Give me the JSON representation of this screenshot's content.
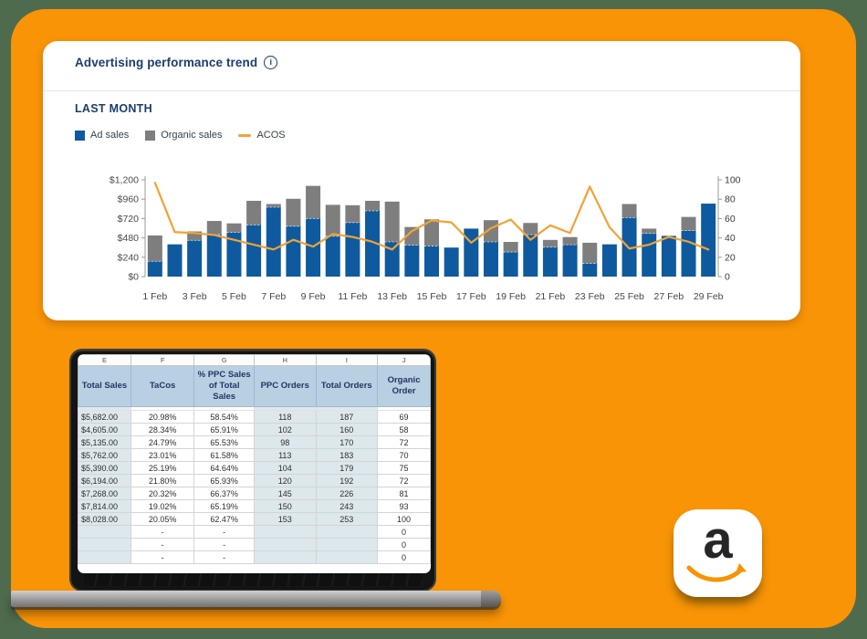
{
  "colors": {
    "outer_background": "#4f6b4d",
    "panel_orange": "#f99406",
    "card_navy": "#1b3e6d",
    "bar_blue": "#0f5a9e",
    "bar_gray": "#7e7e7e",
    "acos_orange": "#f2a234",
    "table_header_bg": "#b9cfe2",
    "table_shaded_col": "#dde8ec"
  },
  "chart_card": {
    "title": "Advertising performance trend",
    "info_icon_glyph": "i",
    "period_label": "LAST MONTH",
    "legend": [
      {
        "label": "Ad sales",
        "type": "square",
        "color": "#0f5a9e"
      },
      {
        "label": "Organic sales",
        "type": "square",
        "color": "#7e7e7e"
      },
      {
        "label": "ACOS",
        "type": "line",
        "color": "#f2a234"
      }
    ]
  },
  "chart_data": {
    "type": "bar",
    "subtype": "stacked-bars-with-line",
    "categories": [
      "1 Feb",
      "2 Feb",
      "3 Feb",
      "4 Feb",
      "5 Feb",
      "6 Feb",
      "7 Feb",
      "8 Feb",
      "9 Feb",
      "10 Feb",
      "11 Feb",
      "12 Feb",
      "13 Feb",
      "14 Feb",
      "15 Feb",
      "16 Feb",
      "17 Feb",
      "18 Feb",
      "19 Feb",
      "20 Feb",
      "21 Feb",
      "22 Feb",
      "23 Feb",
      "24 Feb",
      "25 Feb",
      "26 Feb",
      "27 Feb",
      "28 Feb",
      "29 Feb"
    ],
    "x_tick_labels_shown": [
      "1 Feb",
      "3 Feb",
      "5 Feb",
      "7 Feb",
      "9 Feb",
      "11 Feb",
      "13 Feb",
      "15 Feb",
      "17 Feb",
      "19 Feb",
      "21 Feb",
      "23 Feb",
      "25 Feb",
      "27 Feb",
      "29 Feb"
    ],
    "series": [
      {
        "name": "Ad sales",
        "type": "bar",
        "stack": "sales",
        "axis": "left",
        "color": "#0f5a9e",
        "values": [
          190,
          400,
          450,
          520,
          550,
          640,
          860,
          625,
          720,
          500,
          670,
          815,
          430,
          390,
          380,
          360,
          595,
          430,
          305,
          520,
          365,
          395,
          165,
          400,
          730,
          535,
          505,
          570,
          905
        ]
      },
      {
        "name": "Organic sales",
        "type": "bar",
        "stack": "sales",
        "axis": "left",
        "color": "#7e7e7e",
        "values": [
          320,
          0,
          110,
          170,
          110,
          300,
          40,
          340,
          405,
          390,
          215,
          125,
          500,
          225,
          330,
          0,
          0,
          270,
          125,
          145,
          90,
          95,
          255,
          0,
          170,
          60,
          0,
          170,
          0
        ]
      },
      {
        "name": "ACOS",
        "type": "line",
        "axis": "right",
        "color": "#f2a234",
        "values": [
          97,
          46,
          45,
          43,
          38,
          33,
          28,
          38,
          31,
          44,
          41,
          36,
          28,
          47,
          58,
          56,
          35,
          50,
          59,
          38,
          53,
          45,
          93,
          51,
          29,
          33,
          41,
          36,
          28
        ]
      }
    ],
    "left_axis": {
      "min": 0,
      "max": 1200,
      "tick_values": [
        0,
        240,
        480,
        720,
        960,
        1200
      ],
      "tick_labels": [
        "$0",
        "$240",
        "$480",
        "$720",
        "$960",
        "$1,200"
      ]
    },
    "right_axis": {
      "min": 0,
      "max": 100,
      "tick_values": [
        0,
        20,
        40,
        60,
        80,
        100
      ],
      "tick_labels": [
        "0",
        "20",
        "40",
        "60",
        "80",
        "100"
      ]
    },
    "grid": false,
    "legend_position": "top-left"
  },
  "spreadsheet": {
    "column_letters": [
      "E",
      "F",
      "G",
      "H",
      "I",
      "J"
    ],
    "headers": [
      "Total Sales",
      "TaCos",
      "% PPC Sales of Total Sales",
      "PPC Orders",
      "Total Orders",
      "Organic Order"
    ],
    "shaded_column_indexes": [
      0,
      3,
      4
    ],
    "rows": [
      [
        "$5,682.00",
        "20.98%",
        "58.54%",
        "118",
        "187",
        "69"
      ],
      [
        "$4,605.00",
        "28.34%",
        "65.91%",
        "102",
        "160",
        "58"
      ],
      [
        "$5,135.00",
        "24.79%",
        "65.53%",
        "98",
        "170",
        "72"
      ],
      [
        "$5,762.00",
        "23.01%",
        "61.58%",
        "113",
        "183",
        "70"
      ],
      [
        "$5,390.00",
        "25.19%",
        "64.64%",
        "104",
        "179",
        "75"
      ],
      [
        "$6,194.00",
        "21.80%",
        "65.93%",
        "120",
        "192",
        "72"
      ],
      [
        "$7,268.00",
        "20.32%",
        "66.37%",
        "145",
        "226",
        "81"
      ],
      [
        "$7,814.00",
        "19.02%",
        "65.19%",
        "150",
        "243",
        "93"
      ],
      [
        "$8,028.00",
        "20.05%",
        "62.47%",
        "153",
        "253",
        "100"
      ],
      [
        "",
        "-",
        "-",
        "",
        "",
        "0"
      ],
      [
        "",
        "-",
        "-",
        "",
        "",
        "0"
      ],
      [
        "",
        "-",
        "-",
        "",
        "",
        "0"
      ]
    ]
  },
  "amazon_badge": {
    "letter": "a"
  }
}
